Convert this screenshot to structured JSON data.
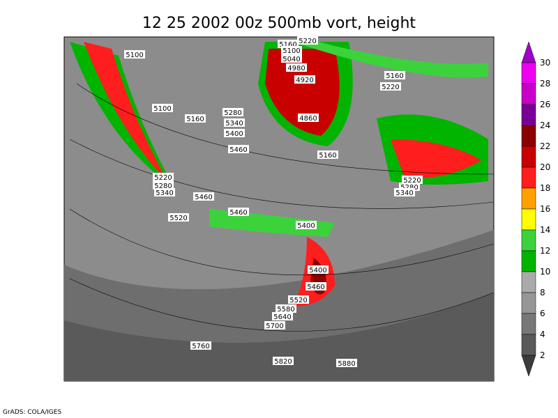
{
  "title": "12 25 2002 00z 500mb vort, height",
  "contour_labels": [
    "5100",
    "5160",
    "5220",
    "5100",
    "5040",
    "4980",
    "4920",
    "5160",
    "5220",
    "5100",
    "5160",
    "5280",
    "5340",
    "5400",
    "5460",
    "4860",
    "5160",
    "5220",
    "5280",
    "5340",
    "5220",
    "5280",
    "5340",
    "5460",
    "5520",
    "5460",
    "5400",
    "5400",
    "5460",
    "5520",
    "5580",
    "5640",
    "5700",
    "5760",
    "5820",
    "5880"
  ],
  "colorbar": {
    "colors": [
      "#a000c8",
      "#f000f0",
      "#c800c8",
      "#780096",
      "#8c0000",
      "#c80000",
      "#ff1e1e",
      "#ffa000",
      "#ffff00",
      "#3cd23c",
      "#00b400",
      "#aaaaaa",
      "#969696",
      "#787878",
      "#5a5a5a",
      "#3c3c3c"
    ],
    "ticks": [
      30,
      28,
      26,
      24,
      22,
      20,
      18,
      16,
      14,
      12,
      10,
      8,
      6,
      4,
      2
    ]
  },
  "footer": "GrADS: COLA/IGES"
}
